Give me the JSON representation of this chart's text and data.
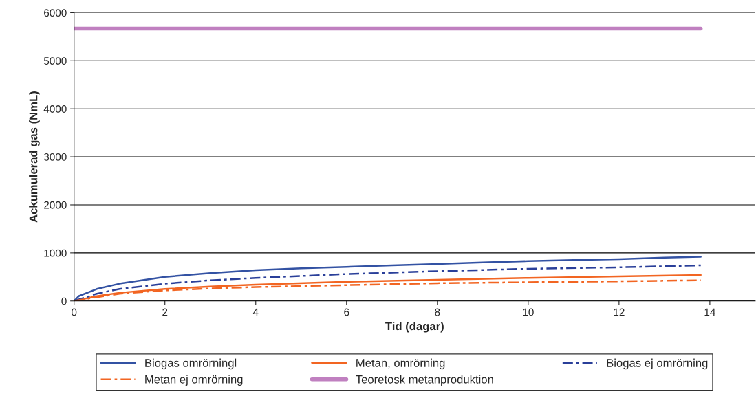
{
  "chart_data": {
    "type": "line",
    "xlabel": "Tid (dagar)",
    "ylabel": "Ackumulerad gas (NmL)",
    "xlim": [
      0,
      15
    ],
    "xticks": [
      0,
      2,
      4,
      6,
      8,
      10,
      12,
      14
    ],
    "ylim": [
      0,
      6000
    ],
    "yticks": [
      0,
      1000,
      2000,
      3000,
      4000,
      5000,
      6000
    ],
    "grid": "y",
    "legend": "bottom",
    "series": [
      {
        "name": "Biogas omrörningl",
        "color": "#3352a3",
        "line_style": "solid",
        "x": [
          0,
          0.1,
          0.5,
          1,
          2,
          3,
          4,
          5,
          6,
          7,
          8,
          9,
          10,
          11,
          12,
          13,
          13.8
        ],
        "values": [
          0,
          100,
          250,
          360,
          500,
          580,
          640,
          680,
          710,
          740,
          770,
          800,
          830,
          850,
          870,
          900,
          920
        ]
      },
      {
        "name": "Metan, omrörning",
        "color": "#f26522",
        "line_style": "solid",
        "x": [
          0,
          0.5,
          1,
          2,
          3,
          4,
          6,
          8,
          10,
          12,
          13.8
        ],
        "values": [
          0,
          100,
          170,
          250,
          300,
          340,
          400,
          440,
          480,
          510,
          540
        ]
      },
      {
        "name": "Biogas ej omrörning",
        "color": "#2a3f99",
        "line_style": "dashdot",
        "x": [
          0,
          0.5,
          1,
          2,
          3,
          4,
          6,
          8,
          10,
          12,
          13.8
        ],
        "values": [
          0,
          150,
          250,
          360,
          430,
          480,
          560,
          620,
          670,
          700,
          740
        ]
      },
      {
        "name": "Metan ej omrörning",
        "color": "#f26522",
        "line_style": "dashdot",
        "x": [
          0,
          0.5,
          1,
          2,
          3,
          4,
          6,
          8,
          10,
          12,
          13.8
        ],
        "values": [
          0,
          80,
          150,
          220,
          260,
          290,
          330,
          370,
          390,
          410,
          430
        ]
      },
      {
        "name": "Teoretosk metanproduktion",
        "color": "#c080c0",
        "line_style": "solid",
        "x": [
          0,
          13.8
        ],
        "values": [
          5670,
          5670
        ]
      }
    ]
  }
}
